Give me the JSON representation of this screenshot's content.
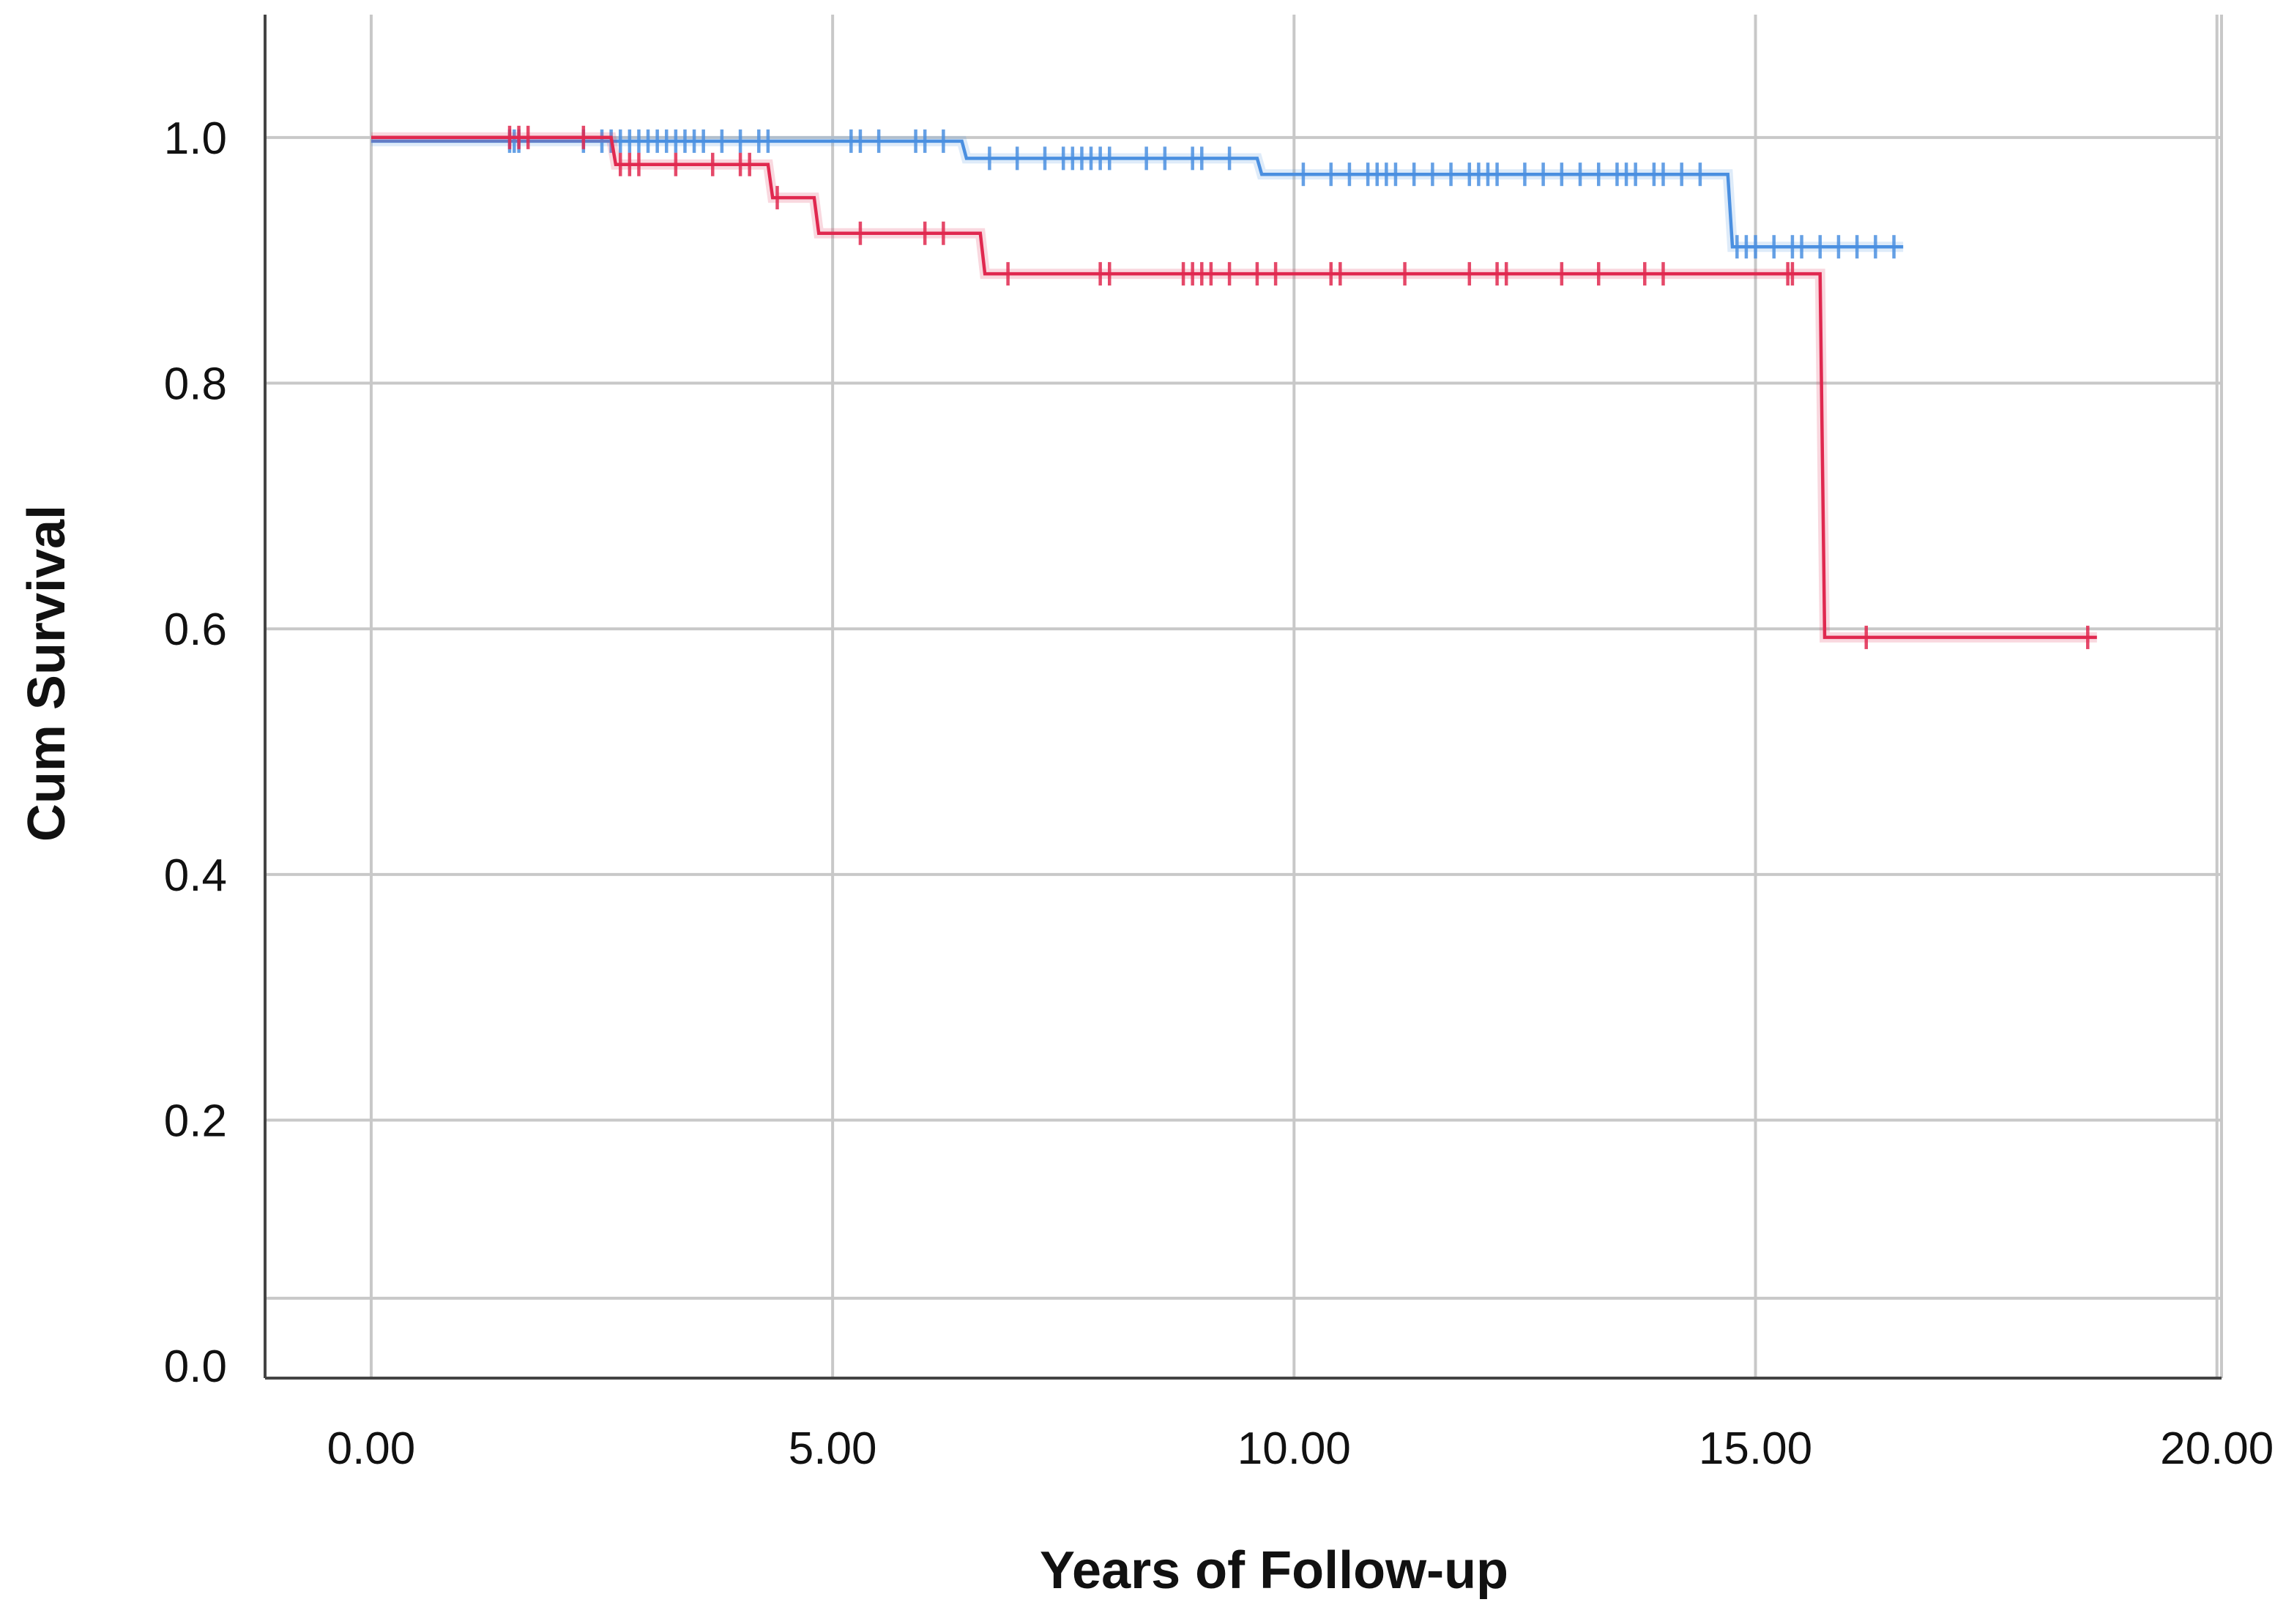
{
  "chart_data": {
    "type": "line",
    "subtype": "kaplan-meier step",
    "xlabel": "Years of Follow-up",
    "ylabel": "Cum Survival",
    "xlim": [
      -1.15,
      20.05
    ],
    "ylim": [
      -0.01,
      1.1
    ],
    "x_ticks": [
      0,
      5,
      10,
      15,
      20
    ],
    "x_tick_labels": [
      "0.00",
      "5.00",
      "10.00",
      "15.00",
      "20.00"
    ],
    "y_ticks": [
      0.0,
      0.2,
      0.4,
      0.6,
      0.8,
      1.0
    ],
    "y_tick_labels": [
      "0.0",
      "0.2",
      "0.4",
      "0.6",
      "0.8",
      "1.0"
    ],
    "y_extra_gridline": 0.055,
    "grid": true,
    "series": [
      {
        "color": "#4a8fe0",
        "steps": [
          [
            0,
            0.997
          ],
          [
            6.4,
            0.997
          ],
          [
            6.45,
            0.983
          ],
          [
            9.6,
            0.983
          ],
          [
            9.65,
            0.97
          ],
          [
            14.7,
            0.97
          ],
          [
            14.75,
            0.911
          ],
          [
            16.6,
            0.911
          ]
        ],
        "censored": [
          [
            1.5,
            0.997
          ],
          [
            1.55,
            0.997
          ],
          [
            1.6,
            0.997
          ],
          [
            2.3,
            0.997
          ],
          [
            2.5,
            0.997
          ],
          [
            2.6,
            0.997
          ],
          [
            2.7,
            0.997
          ],
          [
            2.8,
            0.997
          ],
          [
            2.9,
            0.997
          ],
          [
            3.0,
            0.997
          ],
          [
            3.1,
            0.997
          ],
          [
            3.2,
            0.997
          ],
          [
            3.3,
            0.997
          ],
          [
            3.4,
            0.997
          ],
          [
            3.5,
            0.997
          ],
          [
            3.6,
            0.997
          ],
          [
            3.8,
            0.997
          ],
          [
            4.0,
            0.997
          ],
          [
            4.2,
            0.997
          ],
          [
            4.3,
            0.997
          ],
          [
            5.2,
            0.997
          ],
          [
            5.3,
            0.997
          ],
          [
            5.5,
            0.997
          ],
          [
            5.9,
            0.997
          ],
          [
            6.0,
            0.997
          ],
          [
            6.2,
            0.997
          ],
          [
            6.7,
            0.983
          ],
          [
            7.0,
            0.983
          ],
          [
            7.3,
            0.983
          ],
          [
            7.5,
            0.983
          ],
          [
            7.6,
            0.983
          ],
          [
            7.7,
            0.983
          ],
          [
            7.8,
            0.983
          ],
          [
            7.9,
            0.983
          ],
          [
            8.0,
            0.983
          ],
          [
            8.4,
            0.983
          ],
          [
            8.6,
            0.983
          ],
          [
            8.9,
            0.983
          ],
          [
            9.0,
            0.983
          ],
          [
            9.3,
            0.983
          ],
          [
            10.1,
            0.97
          ],
          [
            10.4,
            0.97
          ],
          [
            10.6,
            0.97
          ],
          [
            10.8,
            0.97
          ],
          [
            10.9,
            0.97
          ],
          [
            11.0,
            0.97
          ],
          [
            11.1,
            0.97
          ],
          [
            11.3,
            0.97
          ],
          [
            11.5,
            0.97
          ],
          [
            11.7,
            0.97
          ],
          [
            11.9,
            0.97
          ],
          [
            12.0,
            0.97
          ],
          [
            12.1,
            0.97
          ],
          [
            12.2,
            0.97
          ],
          [
            12.5,
            0.97
          ],
          [
            12.7,
            0.97
          ],
          [
            12.9,
            0.97
          ],
          [
            13.1,
            0.97
          ],
          [
            13.3,
            0.97
          ],
          [
            13.5,
            0.97
          ],
          [
            13.6,
            0.97
          ],
          [
            13.7,
            0.97
          ],
          [
            13.9,
            0.97
          ],
          [
            14.0,
            0.97
          ],
          [
            14.2,
            0.97
          ],
          [
            14.4,
            0.97
          ],
          [
            14.8,
            0.911
          ],
          [
            14.9,
            0.911
          ],
          [
            15.0,
            0.911
          ],
          [
            15.2,
            0.911
          ],
          [
            15.4,
            0.911
          ],
          [
            15.5,
            0.911
          ],
          [
            15.7,
            0.911
          ],
          [
            15.9,
            0.911
          ],
          [
            16.1,
            0.911
          ],
          [
            16.3,
            0.911
          ],
          [
            16.5,
            0.911
          ]
        ]
      },
      {
        "color": "#e0284f",
        "steps": [
          [
            0,
            1.0
          ],
          [
            2.6,
            1.0
          ],
          [
            2.65,
            0.978
          ],
          [
            4.3,
            0.978
          ],
          [
            4.35,
            0.951
          ],
          [
            4.8,
            0.951
          ],
          [
            4.85,
            0.922
          ],
          [
            6.6,
            0.922
          ],
          [
            6.65,
            0.889
          ],
          [
            15.7,
            0.889
          ],
          [
            15.75,
            0.593
          ],
          [
            18.7,
            0.593
          ]
        ],
        "censored": [
          [
            1.5,
            1.0
          ],
          [
            1.6,
            1.0
          ],
          [
            1.7,
            1.0
          ],
          [
            2.3,
            1.0
          ],
          [
            2.7,
            0.978
          ],
          [
            2.8,
            0.978
          ],
          [
            2.9,
            0.978
          ],
          [
            3.3,
            0.978
          ],
          [
            3.7,
            0.978
          ],
          [
            4.0,
            0.978
          ],
          [
            4.1,
            0.978
          ],
          [
            4.4,
            0.951
          ],
          [
            5.3,
            0.922
          ],
          [
            6.0,
            0.922
          ],
          [
            6.2,
            0.922
          ],
          [
            6.9,
            0.889
          ],
          [
            7.9,
            0.889
          ],
          [
            8.0,
            0.889
          ],
          [
            8.8,
            0.889
          ],
          [
            8.9,
            0.889
          ],
          [
            9.0,
            0.889
          ],
          [
            9.1,
            0.889
          ],
          [
            9.3,
            0.889
          ],
          [
            9.6,
            0.889
          ],
          [
            9.8,
            0.889
          ],
          [
            10.4,
            0.889
          ],
          [
            10.5,
            0.889
          ],
          [
            11.2,
            0.889
          ],
          [
            11.9,
            0.889
          ],
          [
            12.2,
            0.889
          ],
          [
            12.3,
            0.889
          ],
          [
            12.9,
            0.889
          ],
          [
            13.3,
            0.889
          ],
          [
            13.8,
            0.889
          ],
          [
            14.0,
            0.889
          ],
          [
            15.35,
            0.889
          ],
          [
            15.4,
            0.889
          ],
          [
            16.2,
            0.593
          ],
          [
            18.6,
            0.593
          ]
        ]
      }
    ]
  }
}
